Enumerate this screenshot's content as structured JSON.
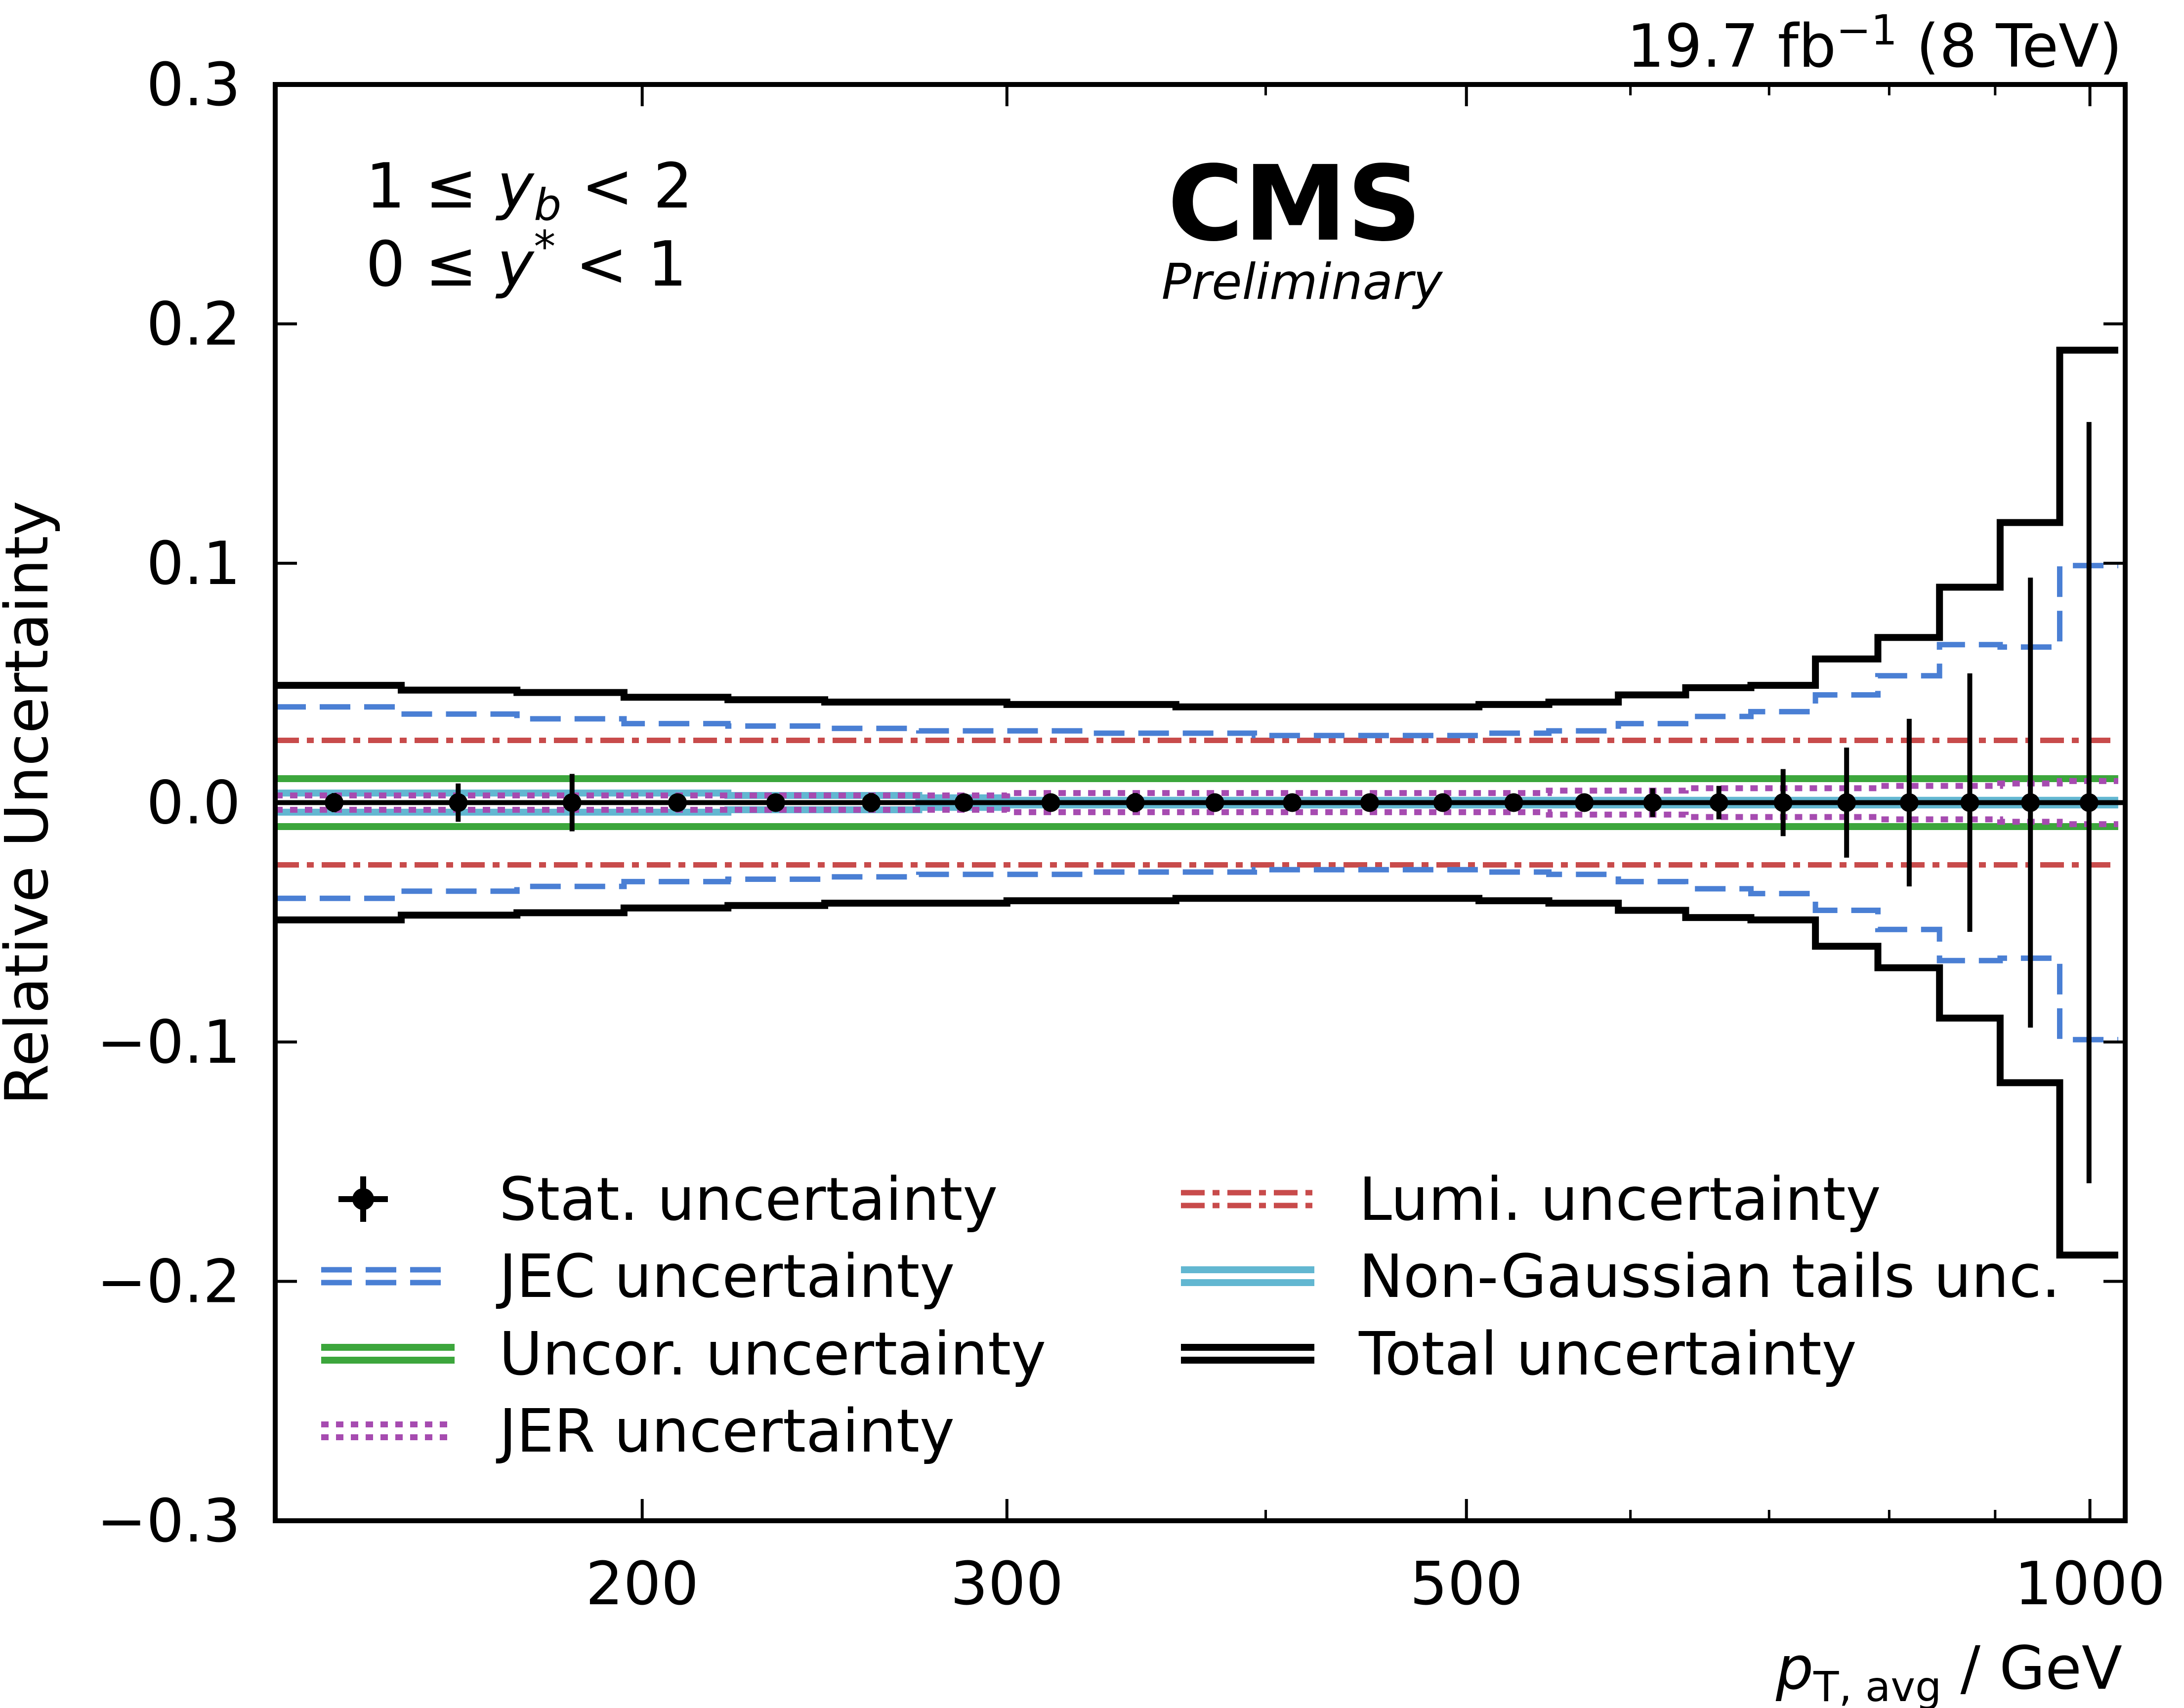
{
  "header": {
    "lumi_text": "19.7 fb",
    "lumi_exp": "−1",
    "energy_text": " (8 TeV)"
  },
  "branding": {
    "experiment": "CMS",
    "status": "Preliminary"
  },
  "region": {
    "line1": {
      "prefix": "1 ≤ ",
      "var": "y",
      "sub": "b",
      "suffix": " < 2"
    },
    "line2": {
      "prefix": "0 ≤ ",
      "var": "y",
      "sup": "*",
      "suffix": " < 1"
    }
  },
  "colors": {
    "total": "#000000",
    "jec": "#4a7fd4",
    "uncor": "#3ca63c",
    "jer": "#a64bb0",
    "lumi": "#c84b4b",
    "nongauss": "#62b7d1",
    "stat": "#000000"
  },
  "chart_data": {
    "type": "step",
    "xscale": "log",
    "xlim": [
      133,
      1040
    ],
    "ylim": [
      -0.3,
      0.3
    ],
    "xlabel": {
      "var": "p",
      "sub": "T, avg",
      "unit": " / GeV"
    },
    "ylabel": "Relative Uncertainty",
    "xticks": [
      {
        "value": 200,
        "label": "200"
      },
      {
        "value": 300,
        "label": "300"
      },
      {
        "value": 500,
        "label": "500"
      },
      {
        "value": 1000,
        "label": "1000"
      }
    ],
    "xminorticks": [
      400,
      600,
      700,
      800,
      900
    ],
    "yticks": [
      {
        "value": -0.3,
        "label": "−0.3"
      },
      {
        "value": -0.2,
        "label": "−0.2"
      },
      {
        "value": -0.1,
        "label": "−0.1"
      },
      {
        "value": 0.0,
        "label": "0.0"
      },
      {
        "value": 0.1,
        "label": "0.1"
      },
      {
        "value": 0.2,
        "label": "0.2"
      },
      {
        "value": 0.3,
        "label": "0.3"
      }
    ],
    "bin_edges": [
      133,
      153,
      174,
      196,
      220,
      245,
      272,
      300,
      330,
      362,
      395,
      430,
      468,
      507,
      548,
      592,
      638,
      686,
      737,
      790,
      846,
      905,
      967,
      1032
    ],
    "bin_centers": [
      142,
      163,
      185,
      208,
      232,
      258,
      286,
      315,
      346,
      378,
      412,
      449,
      487,
      527,
      570,
      615,
      662,
      711,
      763,
      818,
      875,
      936,
      999
    ],
    "series": [
      {
        "key": "total",
        "name": "Total uncertainty",
        "values": [
          0.049,
          0.047,
          0.046,
          0.044,
          0.043,
          0.042,
          0.042,
          0.041,
          0.041,
          0.04,
          0.04,
          0.04,
          0.04,
          0.041,
          0.042,
          0.045,
          0.048,
          0.049,
          0.06,
          0.069,
          0.09,
          0.117,
          0.189
        ]
      },
      {
        "key": "jec",
        "name": "JEC uncertainty",
        "values": [
          0.04,
          0.037,
          0.035,
          0.033,
          0.032,
          0.031,
          0.03,
          0.03,
          0.029,
          0.029,
          0.028,
          0.028,
          0.028,
          0.029,
          0.03,
          0.033,
          0.036,
          0.038,
          0.045,
          0.053,
          0.066,
          0.065,
          0.099
        ]
      },
      {
        "key": "lumi",
        "name": "Lumi. uncertainty",
        "values": [
          0.026,
          0.026,
          0.026,
          0.026,
          0.026,
          0.026,
          0.026,
          0.026,
          0.026,
          0.026,
          0.026,
          0.026,
          0.026,
          0.026,
          0.026,
          0.026,
          0.026,
          0.026,
          0.026,
          0.026,
          0.026,
          0.026,
          0.026
        ]
      },
      {
        "key": "uncor",
        "name": "Uncor. uncertainty",
        "values": [
          0.01,
          0.01,
          0.01,
          0.01,
          0.01,
          0.01,
          0.01,
          0.01,
          0.01,
          0.01,
          0.01,
          0.01,
          0.01,
          0.01,
          0.01,
          0.01,
          0.01,
          0.01,
          0.01,
          0.01,
          0.01,
          0.01,
          0.01
        ]
      },
      {
        "key": "jer",
        "name": "JER uncertainty",
        "values": [
          0.003,
          0.003,
          0.003,
          0.003,
          0.003,
          0.003,
          0.003,
          0.004,
          0.004,
          0.004,
          0.004,
          0.004,
          0.004,
          0.004,
          0.005,
          0.005,
          0.006,
          0.006,
          0.006,
          0.007,
          0.007,
          0.008,
          0.009
        ]
      },
      {
        "key": "nongauss",
        "name": "Non-Gaussian tails unc.",
        "values": [
          0.004,
          0.004,
          0.004,
          0.004,
          0.003,
          0.003,
          0.002,
          0.001,
          0.001,
          0.001,
          0.001,
          0.001,
          0.001,
          0.001,
          0.001,
          0.001,
          0.001,
          0.001,
          0.001,
          0.001,
          0.001,
          0.001,
          0.001
        ]
      },
      {
        "key": "stat",
        "name": "Stat. uncertainty",
        "values": [
          0.004,
          0.008,
          0.012,
          0.003,
          0.003,
          0.004,
          0.003,
          0.003,
          0.004,
          0.002,
          0.002,
          0.002,
          0.002,
          0.002,
          0.003,
          0.006,
          0.007,
          0.014,
          0.023,
          0.035,
          0.054,
          0.094,
          0.159
        ]
      }
    ],
    "legend": {
      "placement": "lower-center",
      "columns": [
        [
          {
            "key": "stat",
            "label": "Stat. uncertainty"
          },
          {
            "key": "jec",
            "label": "JEC uncertainty"
          },
          {
            "key": "uncor",
            "label": "Uncor. uncertainty"
          },
          {
            "key": "jer",
            "label": "JER uncertainty"
          }
        ],
        [
          {
            "key": "lumi",
            "label": "Lumi. uncertainty"
          },
          {
            "key": "nongauss",
            "label": "Non-Gaussian tails unc."
          },
          {
            "key": "total",
            "label": "Total uncertainty"
          }
        ]
      ]
    }
  }
}
